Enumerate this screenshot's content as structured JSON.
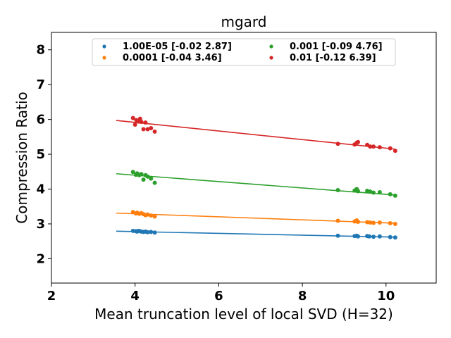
{
  "chart_data": {
    "type": "scatter",
    "title": "mgard",
    "xlabel": "Mean truncation level of local SVD (H=32)",
    "ylabel": "Compression Ratio",
    "xlim": [
      2.0,
      11.2
    ],
    "ylim": [
      1.3,
      8.5
    ],
    "xticks": [
      2,
      4,
      6,
      8,
      10
    ],
    "yticks": [
      2,
      3,
      4,
      5,
      6,
      7,
      8
    ],
    "grid": false,
    "legend_position": "top-center",
    "series": [
      {
        "name": "1.00E-05 [-0.02  2.87]",
        "color": "#1f77b4",
        "fit": {
          "x": [
            3.55,
            10.2
          ],
          "y": [
            2.79,
            2.62
          ]
        },
        "points": [
          [
            3.95,
            2.8
          ],
          [
            4.02,
            2.79
          ],
          [
            4.05,
            2.78
          ],
          [
            4.08,
            2.8
          ],
          [
            4.12,
            2.79
          ],
          [
            4.15,
            2.78
          ],
          [
            4.2,
            2.77
          ],
          [
            4.25,
            2.78
          ],
          [
            4.3,
            2.76
          ],
          [
            4.38,
            2.77
          ],
          [
            4.47,
            2.75
          ],
          [
            8.85,
            2.66
          ],
          [
            9.25,
            2.65
          ],
          [
            9.3,
            2.66
          ],
          [
            9.33,
            2.64
          ],
          [
            9.55,
            2.65
          ],
          [
            9.6,
            2.64
          ],
          [
            9.7,
            2.63
          ],
          [
            9.85,
            2.64
          ],
          [
            10.1,
            2.62
          ],
          [
            10.22,
            2.61
          ]
        ]
      },
      {
        "name": "0.0001 [-0.04  3.46]",
        "color": "#ff7f0e",
        "fit": {
          "x": [
            3.55,
            10.2
          ],
          "y": [
            3.31,
            3.02
          ]
        },
        "points": [
          [
            3.95,
            3.34
          ],
          [
            4.02,
            3.3
          ],
          [
            4.05,
            3.32
          ],
          [
            4.1,
            3.29
          ],
          [
            4.15,
            3.31
          ],
          [
            4.2,
            3.28
          ],
          [
            4.25,
            3.25
          ],
          [
            4.3,
            3.27
          ],
          [
            4.38,
            3.24
          ],
          [
            4.47,
            3.21
          ],
          [
            8.85,
            3.09
          ],
          [
            9.25,
            3.07
          ],
          [
            9.3,
            3.1
          ],
          [
            9.33,
            3.06
          ],
          [
            9.55,
            3.05
          ],
          [
            9.62,
            3.04
          ],
          [
            9.7,
            3.03
          ],
          [
            9.85,
            3.04
          ],
          [
            10.1,
            3.02
          ],
          [
            10.22,
            3.0
          ]
        ]
      },
      {
        "name": "0.001 [-0.09  4.76]",
        "color": "#2ca02c",
        "fit": {
          "x": [
            3.55,
            10.2
          ],
          "y": [
            4.44,
            3.83
          ]
        },
        "points": [
          [
            3.95,
            4.49
          ],
          [
            4.02,
            4.41
          ],
          [
            4.05,
            4.45
          ],
          [
            4.1,
            4.4
          ],
          [
            4.15,
            4.43
          ],
          [
            4.2,
            4.27
          ],
          [
            4.25,
            4.4
          ],
          [
            4.3,
            4.36
          ],
          [
            4.38,
            4.3
          ],
          [
            4.47,
            4.18
          ],
          [
            8.85,
            3.97
          ],
          [
            9.25,
            3.96
          ],
          [
            9.3,
            4.0
          ],
          [
            9.33,
            3.94
          ],
          [
            9.55,
            3.95
          ],
          [
            9.62,
            3.93
          ],
          [
            9.7,
            3.9
          ],
          [
            9.85,
            3.91
          ],
          [
            10.1,
            3.85
          ],
          [
            10.22,
            3.81
          ]
        ]
      },
      {
        "name": "0.01 [-0.12  6.39]",
        "color": "#d62728",
        "fit": {
          "x": [
            3.55,
            10.2
          ],
          "y": [
            5.97,
            5.15
          ]
        },
        "points": [
          [
            3.95,
            6.04
          ],
          [
            4.0,
            5.85
          ],
          [
            4.03,
            5.98
          ],
          [
            4.08,
            5.94
          ],
          [
            4.12,
            6.02
          ],
          [
            4.15,
            5.93
          ],
          [
            4.2,
            5.72
          ],
          [
            4.25,
            5.91
          ],
          [
            4.3,
            5.72
          ],
          [
            4.38,
            5.75
          ],
          [
            4.47,
            5.65
          ],
          [
            8.85,
            5.3
          ],
          [
            9.25,
            5.28
          ],
          [
            9.3,
            5.33
          ],
          [
            9.33,
            5.35
          ],
          [
            9.55,
            5.27
          ],
          [
            9.62,
            5.22
          ],
          [
            9.7,
            5.22
          ],
          [
            9.85,
            5.2
          ],
          [
            10.1,
            5.17
          ],
          [
            10.22,
            5.1
          ]
        ]
      }
    ]
  }
}
